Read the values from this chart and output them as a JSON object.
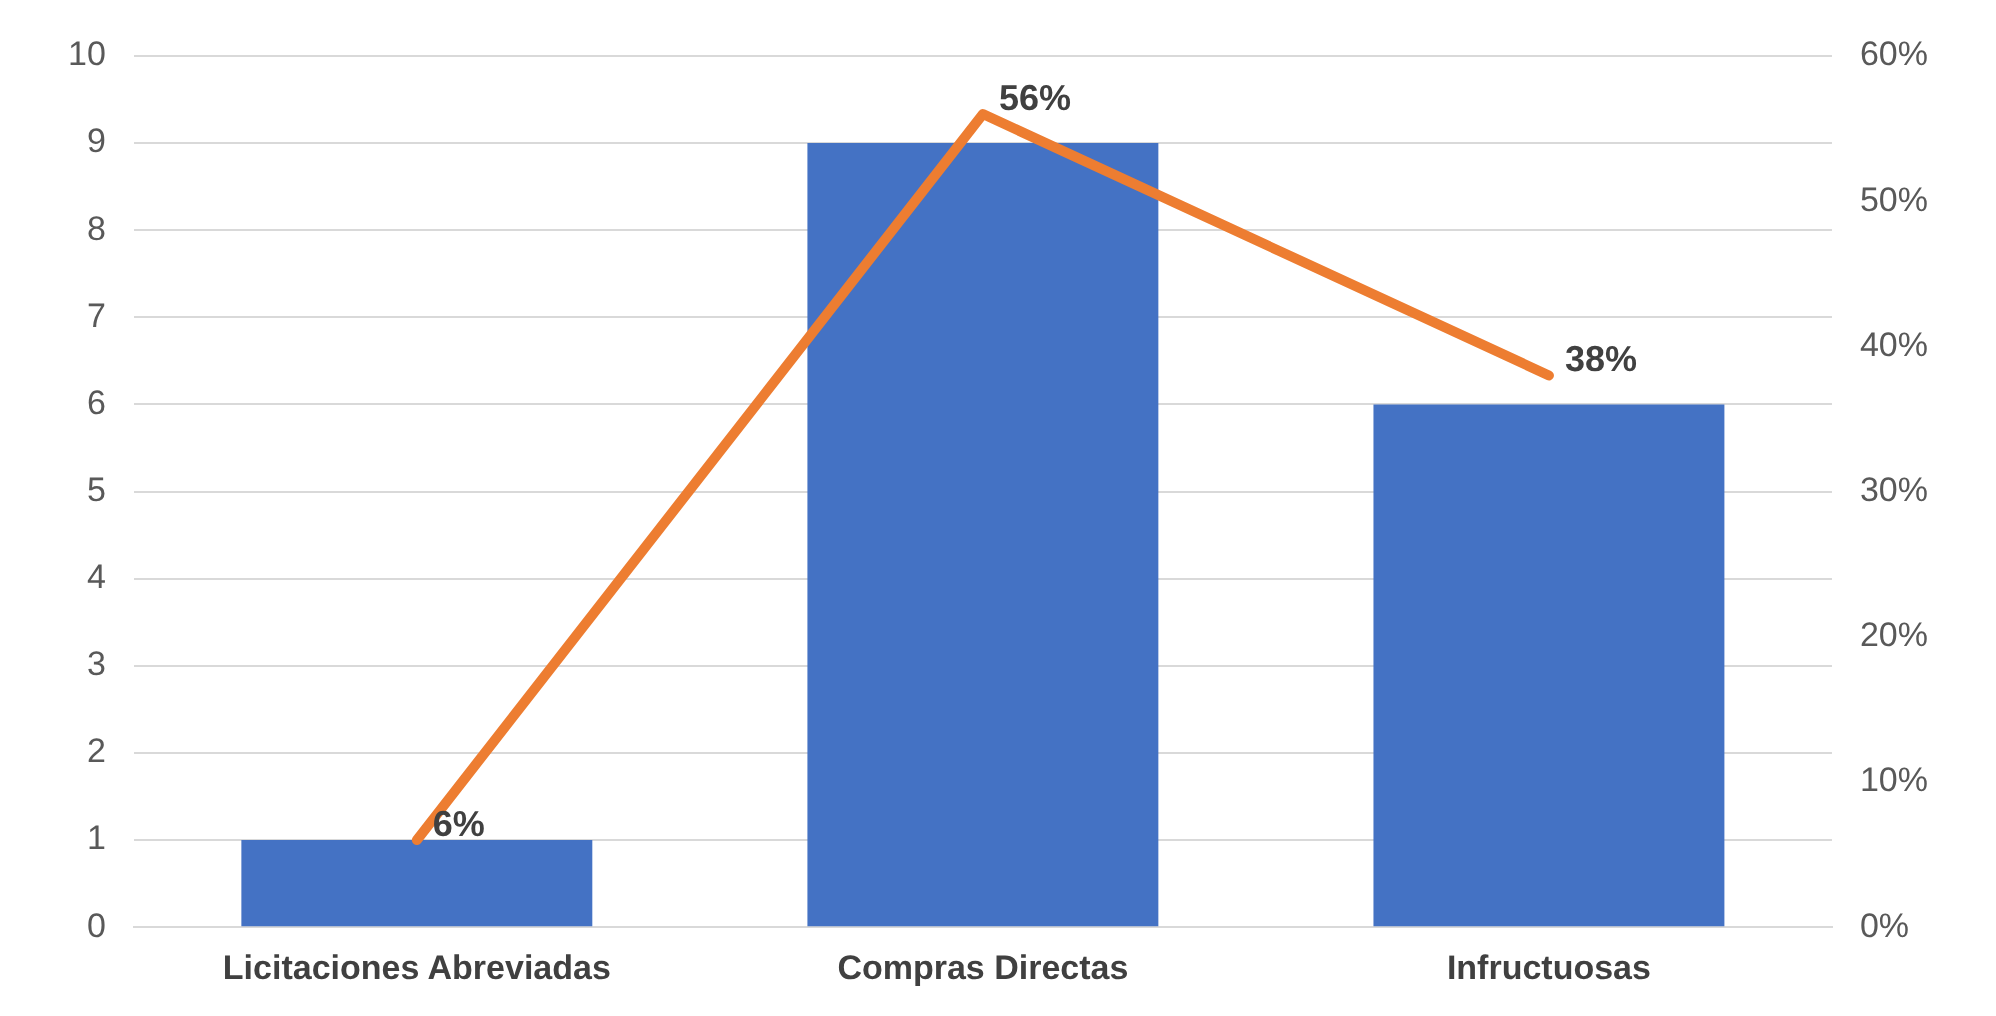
{
  "chart_data": {
    "type": "bar",
    "categories": [
      "Licitaciones Abreviadas",
      "Compras Directas",
      "Infructuosas"
    ],
    "series": [
      {
        "color": "#4472c4",
        "values": [
          1,
          9,
          6
        ]
      },
      {
        "type": "line",
        "axis": "y2",
        "color": "#ed7d31",
        "values": [
          6,
          56,
          38
        ],
        "value_labels": [
          "6%",
          "56%",
          "38%"
        ]
      }
    ],
    "ylim": [
      0,
      10
    ],
    "yticks": [
      0,
      1,
      2,
      3,
      4,
      5,
      6,
      7,
      8,
      9,
      10
    ],
    "y2lim": [
      0,
      60
    ],
    "y2ticks": [
      {
        "value": 0,
        "label": "0%"
      },
      {
        "value": 10,
        "label": "10%"
      },
      {
        "value": 20,
        "label": "20%"
      },
      {
        "value": 30,
        "label": "30%"
      },
      {
        "value": 40,
        "label": "40%"
      },
      {
        "value": 50,
        "label": "50%"
      },
      {
        "value": 60,
        "label": "60%"
      }
    ],
    "grid": "y",
    "legend": false,
    "marker": "none",
    "line_style": "solid"
  }
}
